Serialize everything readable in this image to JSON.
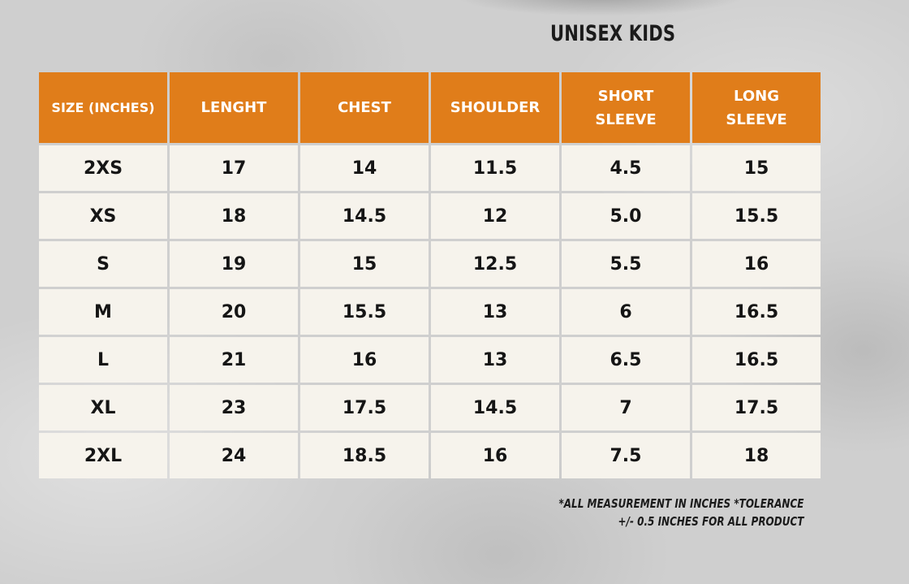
{
  "title": "UNISEX KIDS",
  "table": {
    "headers": [
      "SIZE (INCHES)",
      "LENGHT",
      "CHEST",
      "SHOULDER",
      "SHORT SLEEVE",
      "LONG SLEEVE"
    ],
    "rows": [
      [
        "2XS",
        "17",
        "14",
        "11.5",
        "4.5",
        "15"
      ],
      [
        "XS",
        "18",
        "14.5",
        "12",
        "5.0",
        "15.5"
      ],
      [
        "S",
        "19",
        "15",
        "12.5",
        "5.5",
        "16"
      ],
      [
        "M",
        "20",
        "15.5",
        "13",
        "6",
        "16.5"
      ],
      [
        "L",
        "21",
        "16",
        "13",
        "6.5",
        "16.5"
      ],
      [
        "XL",
        "23",
        "17.5",
        "14.5",
        "7",
        "17.5"
      ],
      [
        "2XL",
        "24",
        "18.5",
        "16",
        "7.5",
        "18"
      ]
    ]
  },
  "note": {
    "line1": "*ALL MEASUREMENT IN INCHES *TOLERANCE",
    "line2": "+/- 0.5 INCHES FOR ALL PRODUCT"
  },
  "colors": {
    "header_bg": "#e07d1a",
    "cell_bg": "#f6f3ec",
    "background": "#cfcfcf"
  }
}
